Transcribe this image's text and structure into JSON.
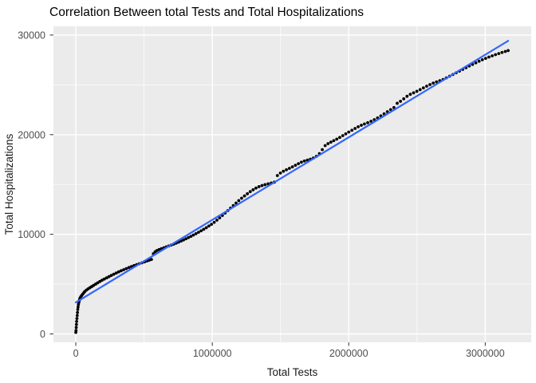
{
  "title": "Correlation Between total Tests and Total Hospitalizations",
  "chart_data": {
    "type": "scatter",
    "title": "Correlation Between total Tests and Total Hospitalizations",
    "xlabel": "Total Tests",
    "ylabel": "Total Hospitalizations",
    "xlim": [
      -164000,
      3337000
    ],
    "ylim": [
      -841,
      30874
    ],
    "x_major_ticks": [
      0,
      1000000,
      2000000,
      3000000
    ],
    "x_tick_labels": [
      "0",
      "1000000",
      "2000000",
      "3000000"
    ],
    "x_minor_ticks": [
      500000,
      1500000,
      2500000
    ],
    "y_major_ticks": [
      0,
      10000,
      20000,
      30000
    ],
    "y_tick_labels": [
      "0",
      "10000",
      "20000",
      "30000"
    ],
    "y_minor_ticks": [
      5000,
      15000,
      25000
    ],
    "grid": "on",
    "legend_position": "none",
    "colors": {
      "panel_background": "#EBEBEB",
      "gridline": "#FFFFFF",
      "point": "#000000",
      "trend_line": "#3366FF",
      "tick_text": "#4D4D4D",
      "axis_title_text": "#1A1A1A",
      "tick_mark": "#333333",
      "title_text": "#000000"
    },
    "series": [
      {
        "name": "observations",
        "type": "scatter",
        "color": "#000000",
        "points": [
          [
            0,
            150
          ],
          [
            1500,
            350
          ],
          [
            3000,
            650
          ],
          [
            4500,
            950
          ],
          [
            6000,
            1250
          ],
          [
            8000,
            1550
          ],
          [
            10000,
            1850
          ],
          [
            12000,
            2150
          ],
          [
            14000,
            2450
          ],
          [
            16500,
            2700
          ],
          [
            19000,
            2950
          ],
          [
            22000,
            3150
          ],
          [
            25000,
            3320
          ],
          [
            28000,
            3480
          ],
          [
            32000,
            3620
          ],
          [
            37000,
            3740
          ],
          [
            43000,
            3860
          ],
          [
            50000,
            3980
          ],
          [
            58000,
            4120
          ],
          [
            66000,
            4260
          ],
          [
            78000,
            4400
          ],
          [
            90000,
            4520
          ],
          [
            103000,
            4640
          ],
          [
            116000,
            4750
          ],
          [
            130000,
            4870
          ],
          [
            145000,
            5000
          ],
          [
            160000,
            5130
          ],
          [
            176000,
            5260
          ],
          [
            192000,
            5390
          ],
          [
            209000,
            5510
          ],
          [
            226000,
            5630
          ],
          [
            243000,
            5750
          ],
          [
            260000,
            5870
          ],
          [
            278000,
            5990
          ],
          [
            296000,
            6110
          ],
          [
            314000,
            6230
          ],
          [
            332000,
            6340
          ],
          [
            351000,
            6450
          ],
          [
            370000,
            6560
          ],
          [
            389000,
            6670
          ],
          [
            408000,
            6770
          ],
          [
            427000,
            6870
          ],
          [
            446000,
            6960
          ],
          [
            465000,
            7050
          ],
          [
            484000,
            7140
          ],
          [
            503000,
            7230
          ],
          [
            521000,
            7320
          ],
          [
            538000,
            7400
          ],
          [
            554000,
            7480
          ],
          [
            568000,
            8050
          ],
          [
            581000,
            8250
          ],
          [
            594000,
            8370
          ],
          [
            610000,
            8470
          ],
          [
            627000,
            8560
          ],
          [
            645000,
            8650
          ],
          [
            663000,
            8740
          ],
          [
            681000,
            8830
          ],
          [
            699000,
            8920
          ],
          [
            717000,
            9010
          ],
          [
            735000,
            9110
          ],
          [
            753000,
            9210
          ],
          [
            771000,
            9320
          ],
          [
            789000,
            9430
          ],
          [
            807000,
            9550
          ],
          [
            825000,
            9670
          ],
          [
            843000,
            9790
          ],
          [
            861000,
            9920
          ],
          [
            880000,
            10060
          ],
          [
            899000,
            10200
          ],
          [
            918000,
            10350
          ],
          [
            937000,
            10500
          ],
          [
            956000,
            10660
          ],
          [
            975000,
            10830
          ],
          [
            994000,
            11000
          ],
          [
            1014000,
            11200
          ],
          [
            1034000,
            11420
          ],
          [
            1054000,
            11650
          ],
          [
            1074000,
            11890
          ],
          [
            1094000,
            12130
          ],
          [
            1114000,
            12380
          ],
          [
            1134000,
            12630
          ],
          [
            1154000,
            12880
          ],
          [
            1174000,
            13130
          ],
          [
            1194000,
            13380
          ],
          [
            1215000,
            13620
          ],
          [
            1236000,
            13850
          ],
          [
            1257000,
            14070
          ],
          [
            1278000,
            14280
          ],
          [
            1299000,
            14470
          ],
          [
            1320000,
            14640
          ],
          [
            1342000,
            14780
          ],
          [
            1364000,
            14890
          ],
          [
            1386000,
            14980
          ],
          [
            1409000,
            15060
          ],
          [
            1432000,
            15140
          ],
          [
            1455000,
            15230
          ],
          [
            1477000,
            15900
          ],
          [
            1499000,
            16150
          ],
          [
            1521000,
            16330
          ],
          [
            1543000,
            16480
          ],
          [
            1565000,
            16620
          ],
          [
            1587000,
            16770
          ],
          [
            1609000,
            16930
          ],
          [
            1631000,
            17090
          ],
          [
            1653000,
            17240
          ],
          [
            1675000,
            17360
          ],
          [
            1697000,
            17450
          ],
          [
            1719000,
            17540
          ],
          [
            1741000,
            17660
          ],
          [
            1763000,
            17830
          ],
          [
            1785000,
            18100
          ],
          [
            1806000,
            18500
          ],
          [
            1827000,
            18900
          ],
          [
            1848000,
            19100
          ],
          [
            1869000,
            19250
          ],
          [
            1890000,
            19400
          ],
          [
            1912000,
            19550
          ],
          [
            1934000,
            19720
          ],
          [
            1956000,
            19900
          ],
          [
            1978000,
            20080
          ],
          [
            2000000,
            20260
          ],
          [
            2023000,
            20440
          ],
          [
            2046000,
            20620
          ],
          [
            2069000,
            20790
          ],
          [
            2092000,
            20940
          ],
          [
            2115000,
            21070
          ],
          [
            2139000,
            21200
          ],
          [
            2163000,
            21340
          ],
          [
            2187000,
            21500
          ],
          [
            2211000,
            21680
          ],
          [
            2235000,
            21880
          ],
          [
            2259000,
            22090
          ],
          [
            2283000,
            22300
          ],
          [
            2307000,
            22510
          ],
          [
            2331000,
            22720
          ],
          [
            2355000,
            23150
          ],
          [
            2379000,
            23350
          ],
          [
            2403000,
            23600
          ],
          [
            2427000,
            23850
          ],
          [
            2451000,
            24050
          ],
          [
            2475000,
            24200
          ],
          [
            2499000,
            24350
          ],
          [
            2523000,
            24520
          ],
          [
            2547000,
            24700
          ],
          [
            2571000,
            24870
          ],
          [
            2595000,
            25030
          ],
          [
            2619000,
            25180
          ],
          [
            2643000,
            25300
          ],
          [
            2667000,
            25420
          ],
          [
            2691000,
            25540
          ],
          [
            2715000,
            25700
          ],
          [
            2739000,
            25870
          ],
          [
            2763000,
            26040
          ],
          [
            2787000,
            26210
          ],
          [
            2811000,
            26380
          ],
          [
            2835000,
            26550
          ],
          [
            2859000,
            26720
          ],
          [
            2883000,
            26890
          ],
          [
            2907000,
            27050
          ],
          [
            2931000,
            27210
          ],
          [
            2955000,
            27370
          ],
          [
            2979000,
            27520
          ],
          [
            3003000,
            27660
          ],
          [
            3027000,
            27790
          ],
          [
            3051000,
            27910
          ],
          [
            3075000,
            28030
          ],
          [
            3099000,
            28140
          ],
          [
            3123000,
            28250
          ],
          [
            3147000,
            28350
          ],
          [
            3168000,
            28440
          ]
        ]
      },
      {
        "name": "linear-fit",
        "type": "line",
        "color": "#3366FF",
        "points": [
          [
            0,
            3160
          ],
          [
            3168000,
            29420
          ]
        ]
      }
    ]
  }
}
